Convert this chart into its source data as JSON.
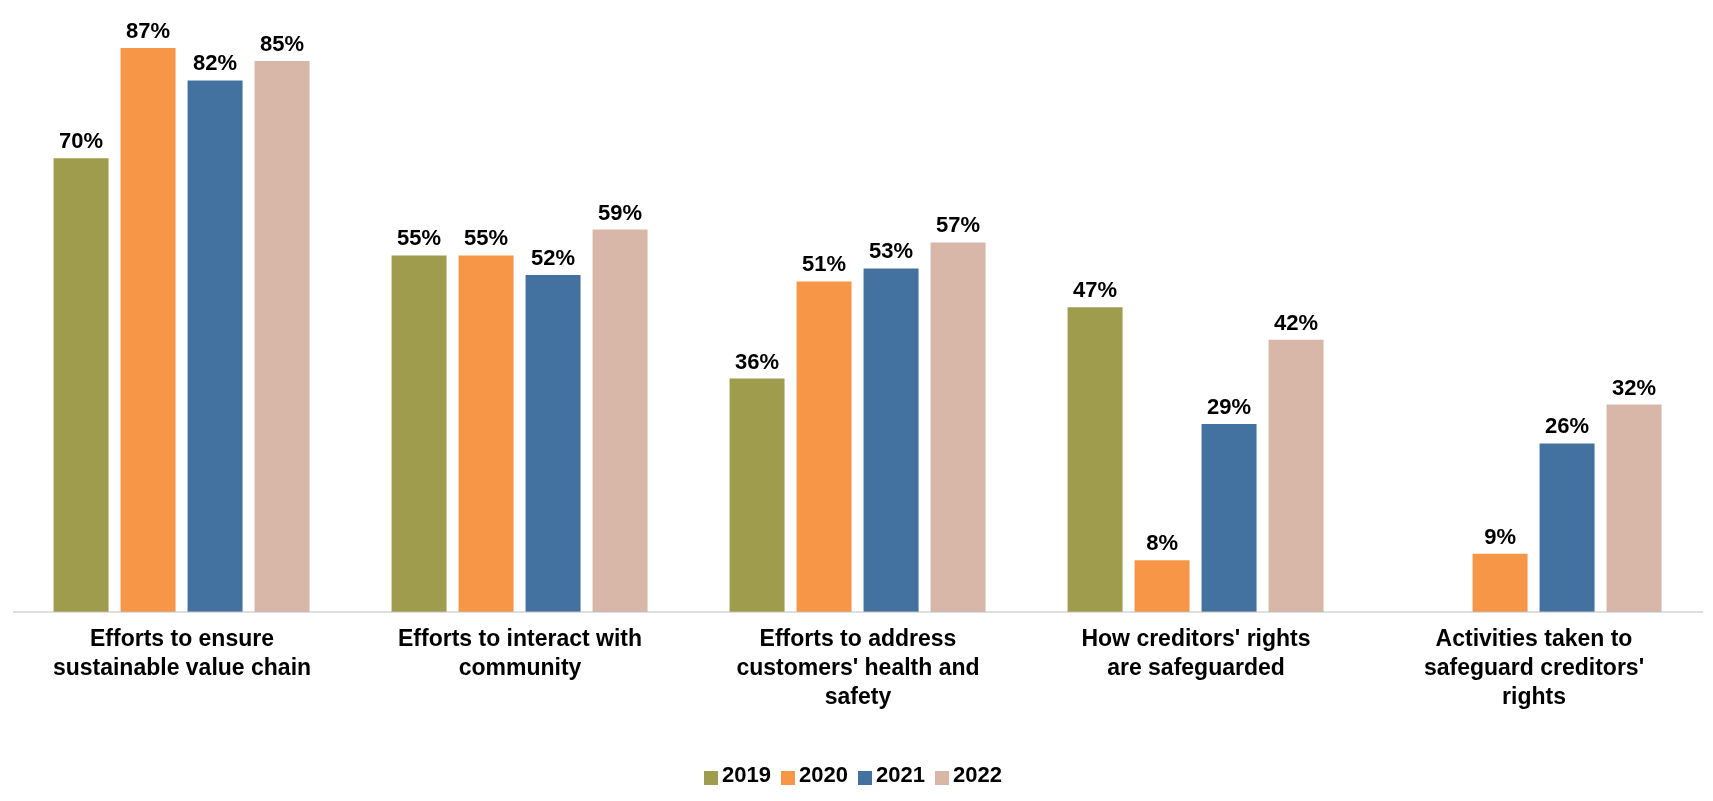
{
  "chart_data": {
    "type": "bar",
    "categories": [
      "Efforts to ensure sustainable value chain",
      "Efforts to interact with community",
      "Efforts to address customers' health and safety",
      "How creditors' rights are safeguarded",
      "Activities taken to safeguard creditors' rights"
    ],
    "series": [
      {
        "name": "2019",
        "color": "#a09c4e",
        "values": [
          70,
          55,
          36,
          47,
          null
        ],
        "value_labels": [
          "70%",
          "55%",
          "36%",
          "47%",
          null
        ]
      },
      {
        "name": "2020",
        "color": "#f79646",
        "values": [
          87,
          55,
          51,
          8,
          9
        ],
        "value_labels": [
          "87%",
          "55%",
          "51%",
          "8%",
          "9%"
        ]
      },
      {
        "name": "2021",
        "color": "#4472a0",
        "values": [
          82,
          52,
          53,
          29,
          26
        ],
        "value_labels": [
          "82%",
          "52%",
          "53%",
          "29%",
          "26%"
        ]
      },
      {
        "name": "2022",
        "color": "#d8b7a9",
        "values": [
          85,
          59,
          57,
          42,
          32
        ],
        "value_labels": [
          "85%",
          "59%",
          "57%",
          "42%",
          "32%"
        ]
      }
    ],
    "legend": "bottom",
    "grid": false
  }
}
